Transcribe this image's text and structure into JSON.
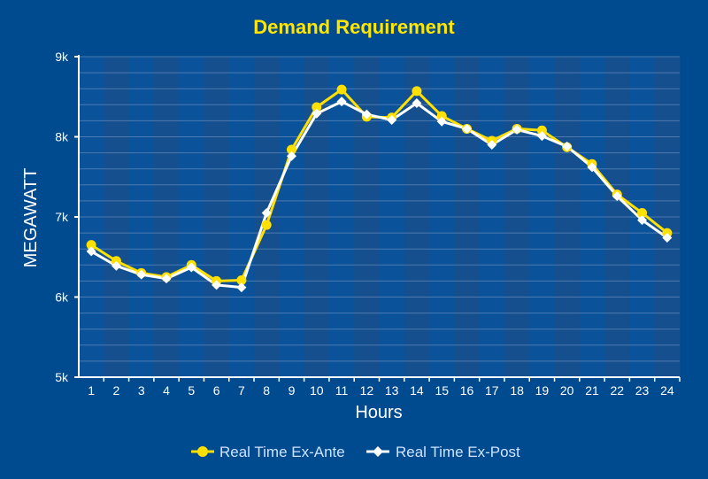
{
  "colors": {
    "background": "#004a8f",
    "plot_band_a": "#0a5299",
    "plot_band_b": "#154f8e",
    "gridline": "#5b84b8",
    "axis": "#ffffff",
    "ex_ante": "#ffe000",
    "ex_post": "#ffffff",
    "title": "#ffe600"
  },
  "chart_data": {
    "type": "line",
    "title": "Demand Requirement",
    "xlabel": "Hours",
    "ylabel": "MEGAWATT",
    "categories": [
      "1",
      "2",
      "3",
      "4",
      "5",
      "6",
      "7",
      "8",
      "9",
      "10",
      "11",
      "12",
      "13",
      "14",
      "15",
      "16",
      "17",
      "18",
      "19",
      "20",
      "21",
      "22",
      "23",
      "24"
    ],
    "ylim": [
      5000,
      9000
    ],
    "y_ticks": [
      {
        "value": 5000,
        "label": "5k"
      },
      {
        "value": 6000,
        "label": "6k"
      },
      {
        "value": 7000,
        "label": "7k"
      },
      {
        "value": 8000,
        "label": "8k"
      },
      {
        "value": 9000,
        "label": "9k"
      }
    ],
    "minor_grid_step": 200,
    "grid": true,
    "legend_position": "bottom-center",
    "series": [
      {
        "name": "Real Time Ex-Ante",
        "marker": "circle",
        "color": "#ffe000",
        "values": [
          6650,
          6450,
          6300,
          6250,
          6400,
          6200,
          6210,
          6900,
          7840,
          8370,
          8590,
          8250,
          8240,
          8570,
          8260,
          8100,
          7950,
          8100,
          8080,
          7870,
          7660,
          7280,
          7050,
          6800
        ]
      },
      {
        "name": "Real Time Ex-Post",
        "marker": "diamond",
        "color": "#ffffff",
        "values": [
          6570,
          6390,
          6280,
          6230,
          6370,
          6150,
          6120,
          7050,
          7760,
          8290,
          8440,
          8280,
          8210,
          8420,
          8190,
          8100,
          7900,
          8090,
          8010,
          7880,
          7620,
          7260,
          6960,
          6740
        ]
      }
    ]
  }
}
